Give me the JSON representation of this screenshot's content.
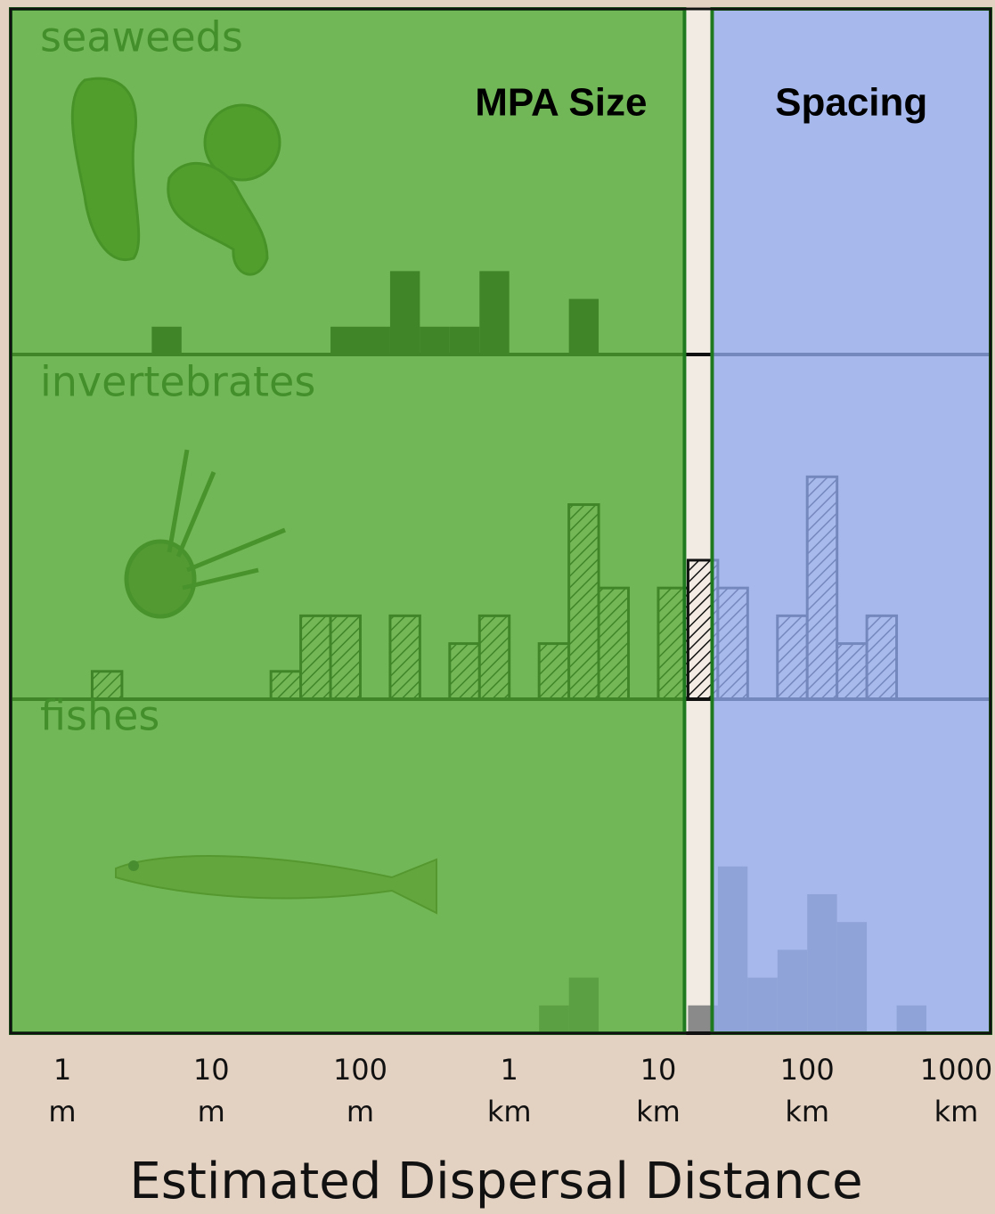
{
  "chart_data": {
    "type": "histogram",
    "xlabel": "Estimated Dispersal Distance",
    "xscale": "log",
    "xlim": [
      0.45,
      1700000
    ],
    "xticks": [
      {
        "value": 1,
        "label": "1 m"
      },
      {
        "value": 10,
        "label": "10 m"
      },
      {
        "value": 100,
        "label": "100 m"
      },
      {
        "value": 1000,
        "label": "1 km"
      },
      {
        "value": 10000,
        "label": "10 km"
      },
      {
        "value": 100000,
        "label": "100 km"
      },
      {
        "value": 1000000,
        "label": "1000 km"
      }
    ],
    "ylim": [
      0,
      12.4
    ],
    "bins": [
      1,
      1.585,
      2.512,
      3.981,
      6.31,
      10,
      15.85,
      25.12,
      39.81,
      63.1,
      100,
      158.5,
      251.2,
      398.1,
      631,
      1000,
      1585,
      2512,
      3981,
      6310,
      10000,
      15850,
      25120,
      39810,
      63100,
      100000,
      158500,
      251200,
      398100,
      631000
    ],
    "series": [
      {
        "name": "seaweeds",
        "color": "#111111",
        "hatch": false,
        "values": [
          0,
          0,
          0,
          1,
          0,
          0,
          0,
          0,
          0,
          1,
          1,
          3,
          1,
          1,
          3,
          0,
          0,
          2,
          0,
          0,
          0,
          0,
          0,
          0,
          0,
          0,
          0,
          0,
          0
        ]
      },
      {
        "name": "invertebrates",
        "color": "#111111",
        "hatch": true,
        "values": [
          0,
          1,
          0,
          0,
          0,
          0,
          0,
          1,
          3,
          3,
          0,
          3,
          0,
          2,
          3,
          0,
          2,
          7,
          4,
          0,
          4,
          5,
          4,
          0,
          3,
          8,
          2,
          3,
          0
        ]
      },
      {
        "name": "fishes",
        "color": "#8a8a8a",
        "hatch": false,
        "values": [
          0,
          0,
          0,
          0,
          0,
          0,
          0,
          0,
          0,
          0,
          0,
          0,
          0,
          0,
          0,
          0,
          1,
          2,
          0,
          0,
          0,
          1,
          6,
          2,
          3,
          5,
          4,
          0,
          1
        ]
      }
    ],
    "regions": [
      {
        "label": "MPA Size",
        "x": [
          0.45,
          15000
        ],
        "color": "#4ea82f"
      },
      {
        "label": "Spacing",
        "x": [
          23000,
          1700000
        ],
        "color": "#92abee"
      }
    ]
  }
}
